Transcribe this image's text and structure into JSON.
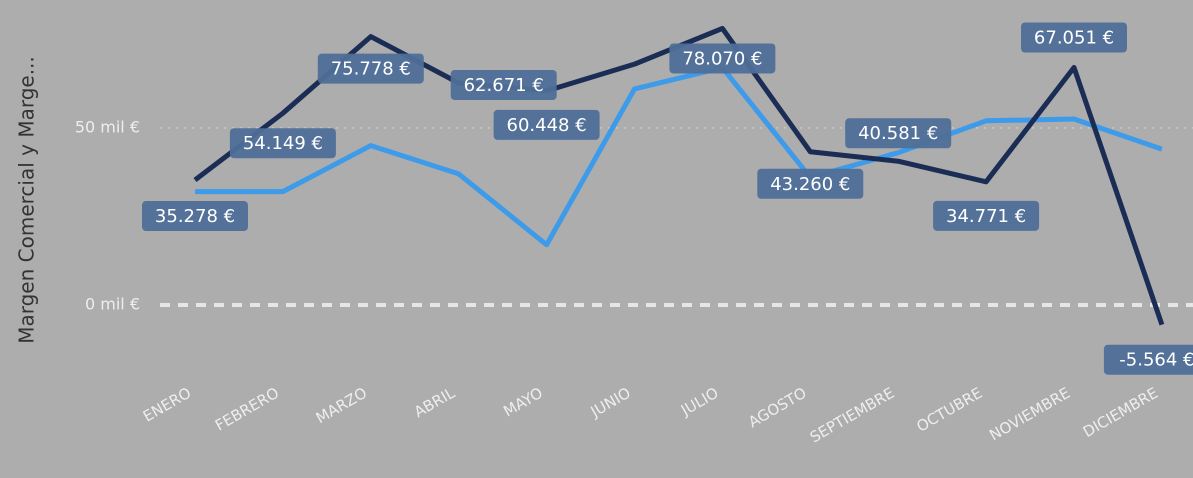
{
  "chart_data": {
    "type": "line",
    "y_label": "Margen Comercial y Marge...",
    "categories": [
      "ENERO",
      "FEBRERO",
      "MARZO",
      "ABRIL",
      "MAYO",
      "JUNIO",
      "JULIO",
      "AGOSTO",
      "SEPTIEMBRE",
      "OCTUBRE",
      "NOVIEMBRE",
      "DICIEMBRE"
    ],
    "series": [
      {
        "color": "#1b2d55",
        "values": [
          35278,
          54149,
          75778,
          62671,
          60448,
          68000,
          78070,
          43260,
          40581,
          34771,
          67051,
          -5564
        ],
        "value_labels": [
          "35.278 €",
          "54.149 €",
          "75.778 €",
          "62.671 €",
          "60.448 €",
          null,
          "78.070 €",
          "43.260 €",
          "40.581 €",
          "34.771 €",
          "67.051 €",
          "-5.564 €"
        ]
      },
      {
        "color": "#3d9be9",
        "values": [
          32000,
          32000,
          45000,
          37000,
          17000,
          61000,
          67000,
          36000,
          43000,
          52000,
          52500,
          44000
        ]
      }
    ],
    "ylim": [
      -10000,
      83000
    ],
    "yticks": [
      {
        "value": 0,
        "label": "0 mil €"
      },
      {
        "value": 50000,
        "label": "50 mil €"
      }
    ],
    "grid": true
  }
}
